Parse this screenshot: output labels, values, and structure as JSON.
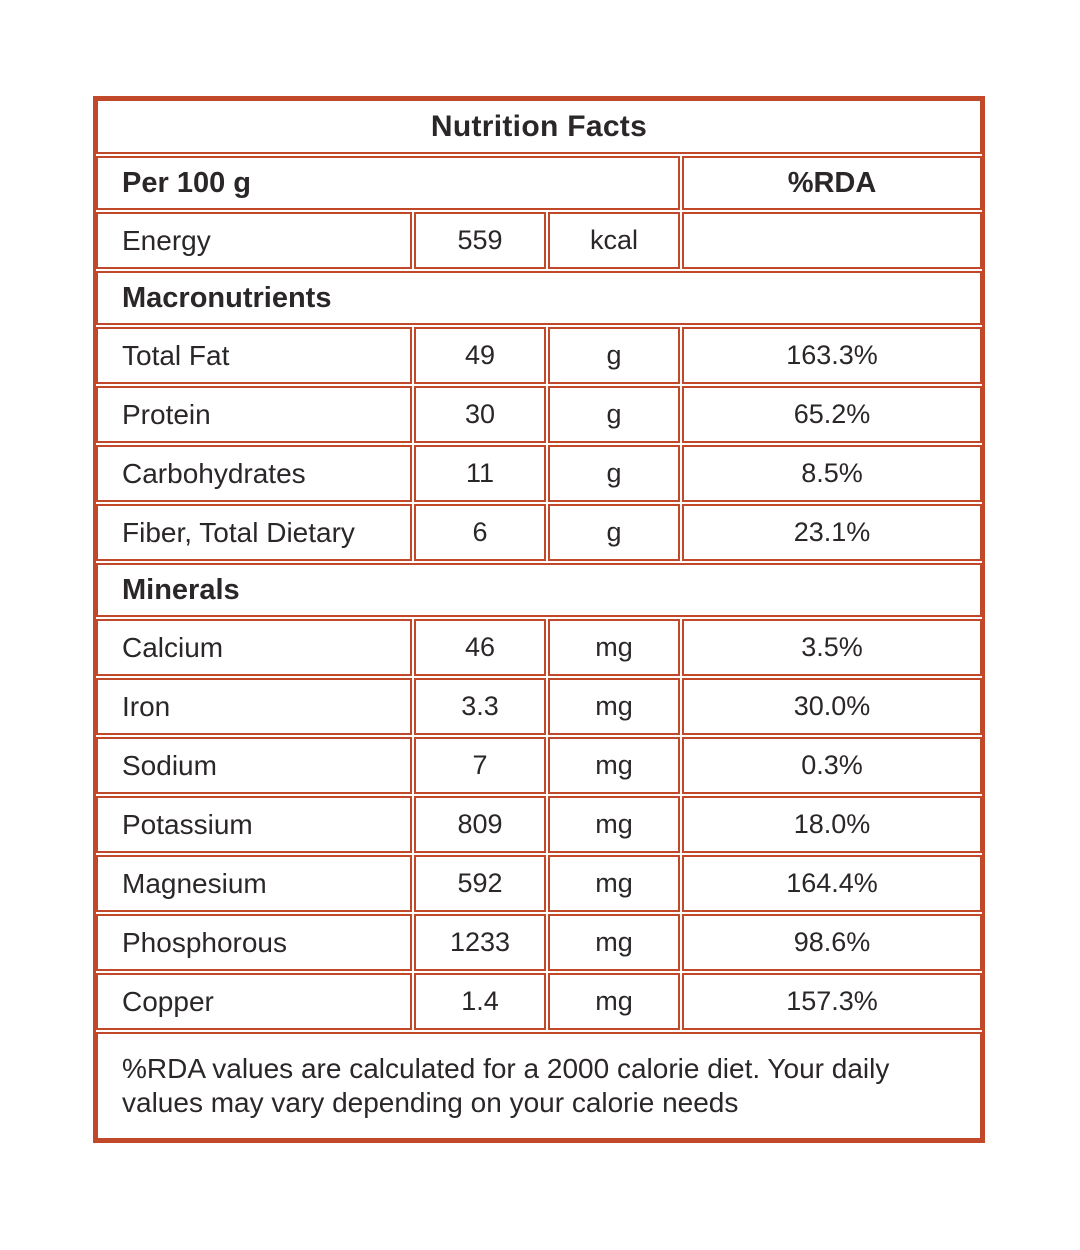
{
  "colors": {
    "accent": "#c1492a",
    "text": "#2b2728",
    "background": "#ffffff"
  },
  "title": "Nutrition Facts",
  "header": {
    "serving_label": "Per 100 g",
    "rda_label": "%RDA"
  },
  "energy": {
    "name": "Energy",
    "value": "559",
    "unit": "kcal",
    "rda": ""
  },
  "sections": [
    {
      "label": "Macronutrients",
      "rows": [
        {
          "name": "Total Fat",
          "value": "49",
          "unit": "g",
          "rda": "163.3%"
        },
        {
          "name": "Protein",
          "value": "30",
          "unit": "g",
          "rda": "65.2%"
        },
        {
          "name": "Carbohydrates",
          "value": "11",
          "unit": "g",
          "rda": "8.5%"
        },
        {
          "name": "Fiber, Total Dietary",
          "value": "6",
          "unit": "g",
          "rda": "23.1%"
        }
      ]
    },
    {
      "label": "Minerals",
      "rows": [
        {
          "name": "Calcium",
          "value": "46",
          "unit": "mg",
          "rda": "3.5%"
        },
        {
          "name": "Iron",
          "value": "3.3",
          "unit": "mg",
          "rda": "30.0%"
        },
        {
          "name": "Sodium",
          "value": "7",
          "unit": "mg",
          "rda": "0.3%"
        },
        {
          "name": "Potassium",
          "value": "809",
          "unit": "mg",
          "rda": "18.0%"
        },
        {
          "name": "Magnesium",
          "value": "592",
          "unit": "mg",
          "rda": "164.4%"
        },
        {
          "name": "Phosphorous",
          "value": "1233",
          "unit": "mg",
          "rda": "98.6%"
        },
        {
          "name": "Copper",
          "value": "1.4",
          "unit": "mg",
          "rda": "157.3%"
        }
      ]
    }
  ],
  "footer": {
    "note": "%RDA values are calculated for a 2000 calorie diet. Your daily values may vary depending on your calorie needs"
  }
}
